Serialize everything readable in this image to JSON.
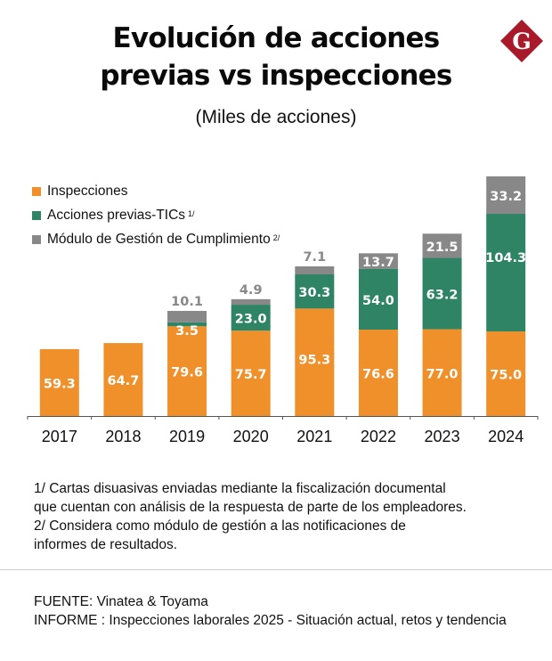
{
  "header": {
    "title_line1": "Evolución de acciones",
    "title_line2": "previas vs inspecciones",
    "subtitle": "(Miles de acciones)",
    "logo": {
      "icon": "g-diamond-logo-icon",
      "letter": "G",
      "color": "#A8192A"
    }
  },
  "legend": [
    {
      "label": "Inspecciones",
      "sup": "",
      "color": "#F0902A"
    },
    {
      "label": "Acciones previas-TICs",
      "sup": "1/",
      "color": "#2E8465"
    },
    {
      "label": "Módulo de Gestión de Cumplimiento",
      "sup": "2/",
      "color": "#888888"
    }
  ],
  "chart_data": {
    "type": "bar",
    "stacked": true,
    "title": "Evolución de acciones previas vs inspecciones",
    "subtitle": "(Miles de acciones)",
    "xlabel": "",
    "ylabel": "",
    "categories": [
      "2017",
      "2018",
      "2019",
      "2020",
      "2021",
      "2022",
      "2023",
      "2024"
    ],
    "ylim": [
      0,
      212.5
    ],
    "grid": false,
    "legend_position": "top-left",
    "series": [
      {
        "name": "Inspecciones",
        "color": "#F0902A",
        "values": [
          59.3,
          64.7,
          79.6,
          75.7,
          95.3,
          76.6,
          77.0,
          75.0
        ],
        "labels": [
          "59.3",
          "64.7",
          "79.6",
          "75.7",
          "95.3",
          "76.6",
          "77.0",
          "75.0"
        ]
      },
      {
        "name": "Acciones previas-TICs 1/",
        "color": "#2E8465",
        "values": [
          null,
          null,
          3.5,
          23.0,
          30.3,
          54.0,
          63.2,
          104.3
        ],
        "labels": [
          "",
          "",
          "3.5",
          "23.0",
          "30.3",
          "54.0",
          "63.2",
          "104.3"
        ]
      },
      {
        "name": "Módulo de Gestión de Cumplimiento 2/",
        "color": "#888888",
        "values": [
          null,
          null,
          10.1,
          4.9,
          7.1,
          13.7,
          21.5,
          33.2
        ],
        "labels": [
          "",
          "",
          "10.1",
          "4.9",
          "7.1",
          "13.7",
          "21.5",
          "33.2"
        ]
      }
    ]
  },
  "footnotes": [
    "1/ Cartas disuasivas enviadas mediante la fiscalización documental",
    "que cuentan con análisis de la respuesta de parte de los empleadores.",
    "2/ Considera como módulo de gestión a las notificaciones de",
    "informes de resultados."
  ],
  "source": {
    "fuente": "FUENTE: Vinatea & Toyama",
    "informe": "INFORME : Inspecciones laborales  2025 -  Situación actual, retos y  tendencia"
  }
}
